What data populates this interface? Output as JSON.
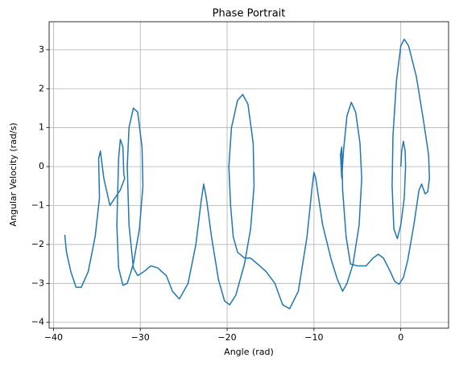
{
  "chart_data": {
    "type": "line",
    "title": "Phase Portrait",
    "x_label": "Angle (rad)",
    "y_label": "Angular Velocity (rad/s)",
    "color": "#1f77b4",
    "grid": true,
    "xlim": [
      -40.5,
      5.5
    ],
    "ylim": [
      -4.15,
      3.72
    ],
    "xticks": [
      {
        "value": -40,
        "label": "−40"
      },
      {
        "value": -30,
        "label": "−30"
      },
      {
        "value": -20,
        "label": "−20"
      },
      {
        "value": -10,
        "label": "−10"
      },
      0
    ],
    "yticks": [
      {
        "value": -4,
        "label": "−4"
      },
      {
        "value": -3,
        "label": "−3"
      },
      {
        "value": -2,
        "label": "−2"
      },
      {
        "value": -1,
        "label": "−1"
      },
      0,
      1,
      2,
      3
    ],
    "x": [
      0,
      0.1,
      0.3,
      0.5,
      0.55,
      0.4,
      0,
      -0.4,
      -0.8,
      -1,
      -0.9,
      -0.5,
      0,
      0.4,
      0.9,
      1.8,
      2.6,
      3.2,
      3.3,
      3.1,
      2.8,
      2.4,
      2.1,
      1.5,
      0.8,
      0.3,
      -0.2,
      -0.7,
      -1.2,
      -2,
      -2.6,
      -3.2,
      -4,
      -5,
      -5.8,
      -6.3,
      -6.7,
      -6.8,
      -6.95,
      -6.8,
      -6.6,
      -6.2,
      -5.7,
      -5.2,
      -4.7,
      -4.5,
      -4.8,
      -5.5,
      -6.2,
      -6.7,
      -7.3,
      -8,
      -9,
      -9.8,
      -10,
      -10.2,
      -10.8,
      -11.8,
      -12.8,
      -13.6,
      -14.5,
      -15.5,
      -16.5,
      -17.3,
      -18,
      -18.8,
      -19.3,
      -19.6,
      -19.8,
      -19.5,
      -18.8,
      -18.2,
      -17.6,
      -17,
      -16.9,
      -17.3,
      -18,
      -19,
      -19.7,
      -20.3,
      -21,
      -21.8,
      -22.4,
      -22.7,
      -23,
      -23.6,
      -24.5,
      -25.5,
      -26.3,
      -27,
      -28,
      -28.8,
      -29.6,
      -30.3,
      -30.8,
      -31.3,
      -31.5,
      -31.3,
      -30.8,
      -30.3,
      -29.8,
      -29.7,
      -30.1,
      -30.8,
      -31.5,
      -32,
      -32.5,
      -32.7,
      -32.5,
      -32.3,
      -32,
      -31.9,
      -31.8,
      -32.3,
      -33.5,
      -34.2,
      -34.6,
      -34.8,
      -34.7,
      -35.2,
      -36,
      -36.8,
      -37.4,
      -38,
      -38.5,
      -38.7
    ],
    "values": [
      0,
      0.4,
      0.65,
      0.4,
      0,
      -0.8,
      -1.5,
      -1.85,
      -1.6,
      -0.5,
      0.8,
      2.2,
      3.1,
      3.27,
      3.1,
      2.3,
      1.2,
      0.3,
      -0.3,
      -0.65,
      -0.7,
      -0.45,
      -0.6,
      -1.5,
      -2.4,
      -2.85,
      -3.02,
      -2.95,
      -2.7,
      -2.35,
      -2.25,
      -2.35,
      -2.55,
      -2.55,
      -2.5,
      -1.8,
      -0.6,
      0.5,
      0.3,
      -0.3,
      0.4,
      1.3,
      1.65,
      1.4,
      0.6,
      -0.3,
      -1.5,
      -2.5,
      -3.0,
      -3.2,
      -2.9,
      -2.4,
      -1.5,
      -0.3,
      -0.15,
      -0.5,
      -1.8,
      -3.2,
      -3.65,
      -3.55,
      -3.0,
      -2.7,
      -2.5,
      -2.35,
      -2.35,
      -2.2,
      -1.8,
      -1.0,
      0,
      1.0,
      1.7,
      1.85,
      1.6,
      0.6,
      -0.5,
      -1.6,
      -2.5,
      -3.3,
      -3.55,
      -3.45,
      -2.9,
      -1.8,
      -0.8,
      -0.45,
      -0.9,
      -2.0,
      -3.0,
      -3.4,
      -3.2,
      -2.8,
      -2.6,
      -2.55,
      -2.7,
      -2.8,
      -2.6,
      -1.5,
      0,
      1.0,
      1.5,
      1.4,
      0.5,
      -0.5,
      -1.6,
      -2.5,
      -3.0,
      -3.05,
      -2.6,
      -1.5,
      0.2,
      0.7,
      0.5,
      -0.2,
      -0.3,
      -0.6,
      -1,
      -0.3,
      0.4,
      0.2,
      -0.8,
      -1.8,
      -2.7,
      -3.1,
      -3.1,
      -2.7,
      -2.2,
      -1.75
    ]
  }
}
